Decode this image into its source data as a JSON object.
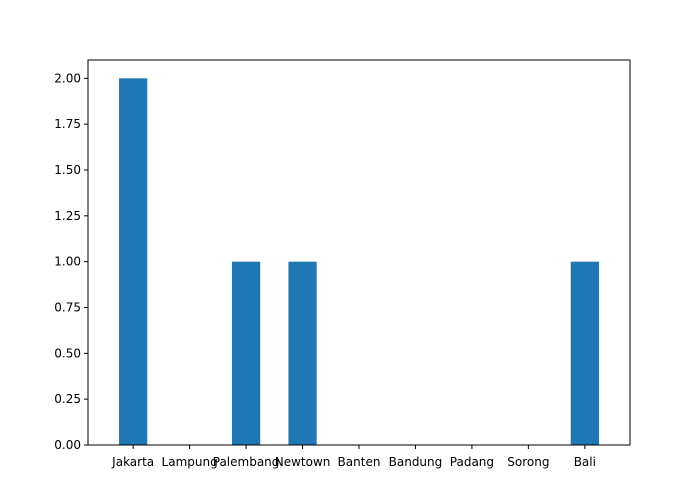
{
  "chart_data": {
    "type": "bar",
    "categories": [
      "Jakarta",
      "Lampung",
      "Palembang",
      "Newtown",
      "Banten",
      "Bandung",
      "Padang",
      "Sorong",
      "Bali"
    ],
    "values": [
      2,
      0,
      1,
      1,
      0,
      0,
      0,
      0,
      1
    ],
    "title": "",
    "xlabel": "",
    "ylabel": "",
    "ylim": [
      0,
      2.1
    ],
    "yticks": [
      "0.00",
      "0.25",
      "0.50",
      "0.75",
      "1.00",
      "1.25",
      "1.50",
      "1.75",
      "2.00"
    ],
    "grid": false,
    "colors": {
      "bar": "#1f77b4",
      "axis": "#000000"
    }
  }
}
